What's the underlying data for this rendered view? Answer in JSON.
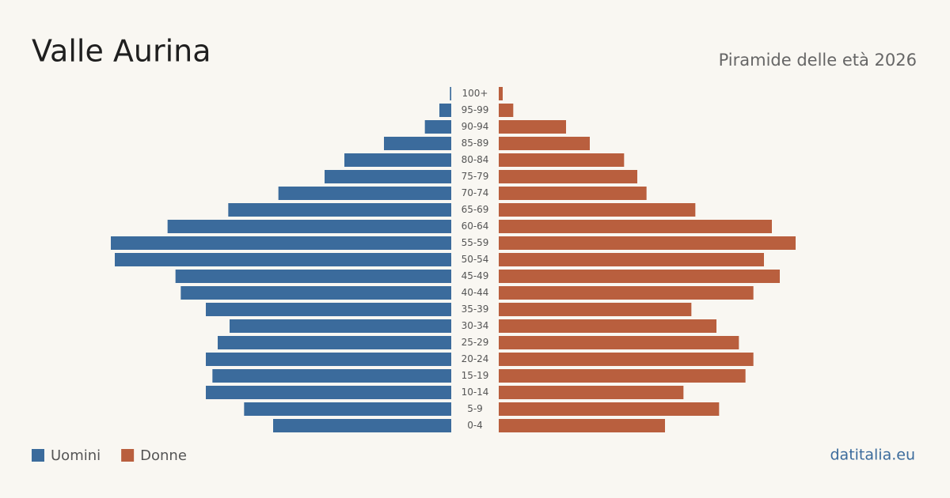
{
  "chart_data": {
    "type": "pyramid",
    "title": "Valle Aurina",
    "subtitle": "Piramide delle età 2026",
    "source": "datitalia.eu",
    "categories": [
      "100+",
      "95-99",
      "90-94",
      "85-89",
      "80-84",
      "75-79",
      "70-74",
      "65-69",
      "60-64",
      "55-59",
      "50-54",
      "45-49",
      "40-44",
      "35-39",
      "30-34",
      "25-29",
      "20-24",
      "15-19",
      "10-14",
      "5-9",
      "0-4"
    ],
    "series": [
      {
        "name": "Uomini",
        "color": "#3b6b9c",
        "values": [
          1,
          9,
          20,
          51,
          81,
          96,
          131,
          169,
          215,
          258,
          255,
          209,
          205,
          186,
          168,
          177,
          186,
          181,
          186,
          157,
          135
        ]
      },
      {
        "name": "Donne",
        "color": "#b95f3e",
        "values": [
          3,
          11,
          51,
          69,
          95,
          105,
          112,
          149,
          207,
          225,
          201,
          213,
          193,
          146,
          165,
          182,
          193,
          187,
          140,
          167,
          126
        ]
      }
    ]
  }
}
